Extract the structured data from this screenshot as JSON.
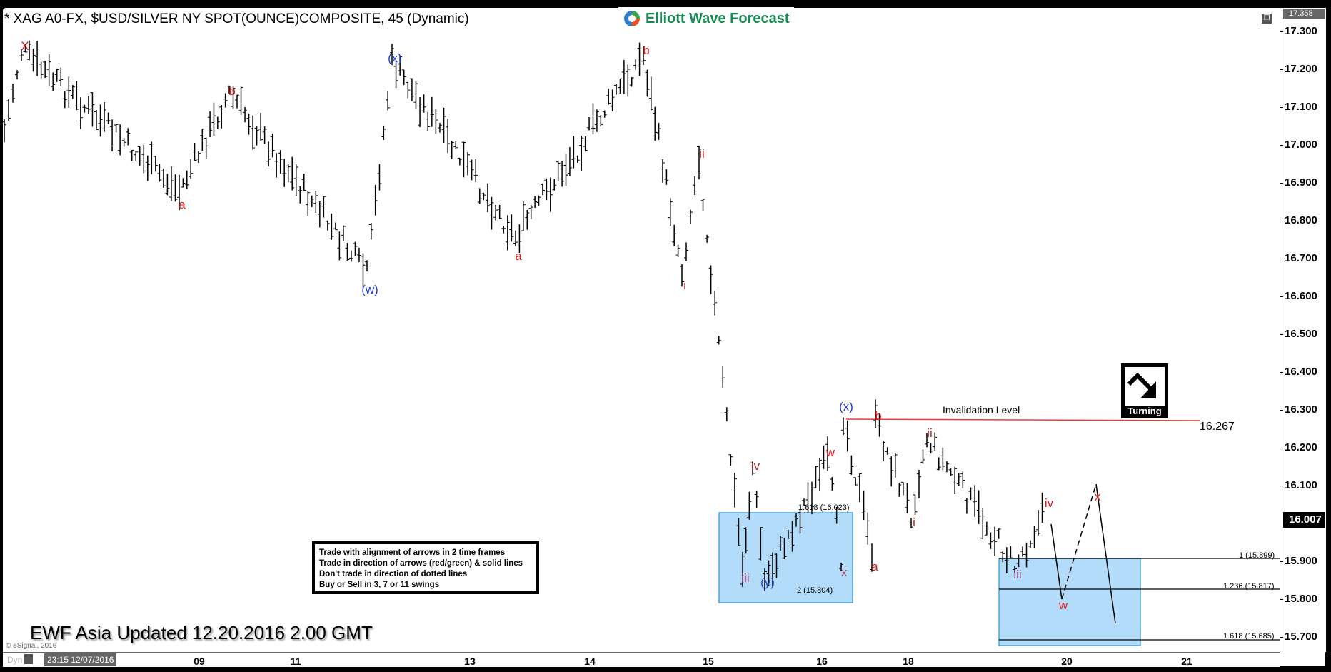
{
  "header": {
    "title": "* XAG A0-FX, $USD/SILVER NY SPOT(OUNCE)COMPOSITE, 45 (Dynamic)",
    "logo_text": "Elliott Wave Forecast"
  },
  "price_scale": {
    "high_marker": "17.358",
    "current_marker": "16.007",
    "ticks": [
      "17.300",
      "17.200",
      "17.100",
      "17.000",
      "16.900",
      "16.800",
      "16.700",
      "16.600",
      "16.500",
      "16.400",
      "16.300",
      "16.200",
      "16.100",
      "16.000",
      "15.900",
      "15.800",
      "15.700"
    ]
  },
  "time_axis": {
    "mode_label": "Dyn",
    "start_datetime": "23:15 12/07/2016",
    "ticks": [
      "09",
      "11",
      "13",
      "14",
      "15",
      "16",
      "18",
      "20",
      "21"
    ]
  },
  "annotations": {
    "update_text": "EWF Asia Updated 12.20.2016 2.00 GMT",
    "copyright": "© eSignal, 2016",
    "invalidation_label": "Invalidation Level",
    "invalidation_value": "16.267",
    "turning_label": "Turning",
    "rules": [
      "Trade with alignment of arrows in 2 time frames",
      "Trade in direction of arrows (red/green) & solid lines",
      "Don't trade in direction of dotted lines",
      "Buy or Sell in 3, 7 or 11 swings"
    ],
    "fib_box1": {
      "top_label": "1.618 (16.023)",
      "bottom_label": "2 (15.804)"
    },
    "fib_box2": {
      "levels": [
        "1 (15.899)",
        "1.236 (15.817)",
        "1.618 (15.685)"
      ]
    }
  },
  "wave_labels": [
    {
      "text": "X",
      "color": "red"
    },
    {
      "text": "a",
      "color": "red"
    },
    {
      "text": "b",
      "color": "red"
    },
    {
      "text": "(w)",
      "color": "blue"
    },
    {
      "text": "(x)",
      "color": "blue"
    },
    {
      "text": "a",
      "color": "red"
    },
    {
      "text": "b",
      "color": "red"
    },
    {
      "text": "i",
      "color": "darkred"
    },
    {
      "text": "ii",
      "color": "darkred"
    },
    {
      "text": "iii",
      "color": "purple"
    },
    {
      "text": "iv",
      "color": "darkred"
    },
    {
      "text": "(y)",
      "color": "blue"
    },
    {
      "text": "w",
      "color": "red"
    },
    {
      "text": "x",
      "color": "purple"
    },
    {
      "text": "(x)",
      "color": "blue"
    },
    {
      "text": "a",
      "color": "red"
    },
    {
      "text": "b",
      "color": "red"
    },
    {
      "text": "i",
      "color": "red"
    },
    {
      "text": "ii",
      "color": "darkred"
    },
    {
      "text": "iii",
      "color": "purple"
    },
    {
      "text": "iv",
      "color": "red"
    },
    {
      "text": "w",
      "color": "red"
    },
    {
      "text": "x",
      "color": "red"
    }
  ],
  "colors": {
    "fib_box_fill": "#b3dcfb",
    "fib_box_border": "#4aa3df",
    "invalidation_line": "#e04040",
    "bar_color": "#000000",
    "logo_green": "#1a8a55"
  },
  "chart_data": {
    "type": "ohlc",
    "title": "* XAG A0-FX, $USD/SILVER NY SPOT(OUNCE)COMPOSITE, 45 (Dynamic)",
    "xlabel": "",
    "ylabel": "",
    "ylim": [
      15.66,
      17.358
    ],
    "x_ticks": [
      "09",
      "11",
      "13",
      "14",
      "15",
      "16",
      "18",
      "20",
      "21"
    ],
    "y_ticks": [
      17.3,
      17.2,
      17.1,
      17.0,
      16.9,
      16.8,
      16.7,
      16.6,
      16.5,
      16.4,
      16.3,
      16.2,
      16.1,
      16.0,
      15.9,
      15.8,
      15.7
    ],
    "grid": false,
    "current_price": 16.007,
    "series_high_marker": 17.358,
    "wave_points": [
      {
        "label": "X",
        "price": 17.23
      },
      {
        "label": "a",
        "price": 16.86
      },
      {
        "label": "b",
        "price": 17.12
      },
      {
        "label": "(w)",
        "price": 16.64
      },
      {
        "label": "(x)",
        "price": 17.2
      },
      {
        "label": "a",
        "price": 16.74
      },
      {
        "label": "b",
        "price": 17.22
      },
      {
        "label": "i",
        "price": 16.65
      },
      {
        "label": "ii",
        "price": 16.95
      },
      {
        "label": "iii",
        "price": 15.86
      },
      {
        "label": "iv",
        "price": 16.13
      },
      {
        "label": "(y)",
        "price": 15.83
      },
      {
        "label": "w",
        "price": 16.15
      },
      {
        "label": "x",
        "price": 15.89
      },
      {
        "label": "(x)",
        "price": 16.267
      },
      {
        "label": "a",
        "price": 15.91
      },
      {
        "label": "b",
        "price": 16.25
      },
      {
        "label": "i",
        "price": 16.01
      },
      {
        "label": "ii",
        "price": 16.21
      },
      {
        "label": "iii",
        "price": 15.87
      },
      {
        "label": "iv",
        "price": 16.02
      },
      {
        "label": "w (projected)",
        "price": 15.79
      },
      {
        "label": "x (projected)",
        "price": 16.04
      },
      {
        "label": "end (projected)",
        "price": 15.72
      }
    ],
    "horizontal_levels": [
      {
        "label": "Invalidation Level",
        "value": 16.267
      },
      {
        "label": "1",
        "value": 15.899
      },
      {
        "label": "1.236",
        "value": 15.817
      },
      {
        "label": "1.618",
        "value": 15.685
      }
    ],
    "zones": [
      {
        "name": "blue box 1",
        "from": 15.804,
        "to": 16.023,
        "labels": [
          "1.618 (16.023)",
          "2 (15.804)"
        ]
      },
      {
        "name": "blue box 2",
        "from": 15.685,
        "to": 15.899
      }
    ],
    "legend": []
  }
}
